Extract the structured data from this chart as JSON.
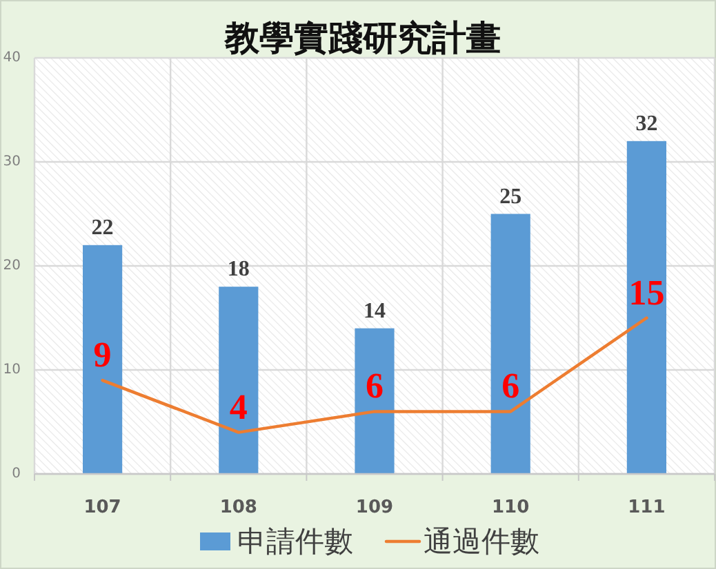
{
  "chart_data": {
    "type": "bar",
    "title": "教學實踐研究計畫",
    "categories": [
      "107",
      "108",
      "109",
      "110",
      "111"
    ],
    "series": [
      {
        "name": "申請件數",
        "color": "#5b9bd5",
        "values": [
          22,
          18,
          14,
          25,
          32
        ]
      },
      {
        "name": "通過件數",
        "type": "line",
        "color": "#ed7d31",
        "values": [
          9,
          4,
          6,
          6,
          15
        ]
      }
    ],
    "ylim": [
      0,
      40
    ],
    "yticks": [
      0,
      10,
      20,
      30,
      40
    ],
    "grid": true,
    "legend": "bottom",
    "data_labels": true
  }
}
